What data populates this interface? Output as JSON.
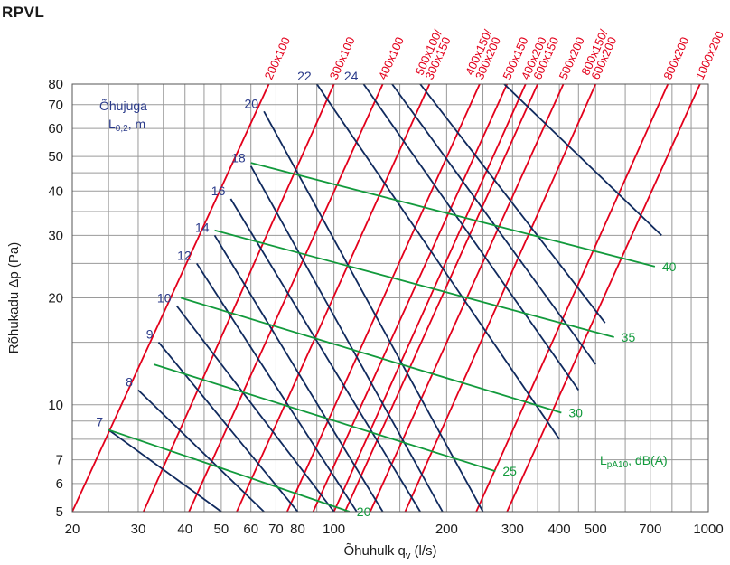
{
  "title": "RPVL",
  "chart_data": {
    "type": "line",
    "xscale": "log",
    "yscale": "log",
    "xlim": [
      20,
      1000
    ],
    "ylim": [
      5,
      80
    ],
    "grid": true,
    "x_ticks": [
      20,
      30,
      40,
      50,
      60,
      70,
      80,
      100,
      200,
      300,
      400,
      500,
      700,
      1000
    ],
    "x_tick_labels": [
      "20",
      "30",
      "40",
      "50",
      "60",
      "70",
      "80",
      "100",
      "200",
      "300",
      "400",
      "500",
      "700",
      "1000"
    ],
    "y_ticks": [
      5,
      6,
      7,
      10,
      20,
      30,
      40,
      50,
      60,
      70,
      80
    ],
    "y_tick_labels": [
      "5",
      "6",
      "7",
      "10",
      "20",
      "30",
      "40",
      "50",
      "60",
      "70",
      "80"
    ],
    "x_grid": [
      20,
      25,
      30,
      35,
      40,
      45,
      50,
      60,
      70,
      80,
      90,
      100,
      150,
      200,
      250,
      300,
      350,
      400,
      450,
      500,
      600,
      700,
      800,
      900,
      1000
    ],
    "y_grid": [
      5,
      6,
      7,
      8,
      9,
      10,
      15,
      20,
      25,
      30,
      35,
      40,
      45,
      50,
      60,
      70,
      80
    ],
    "xlabel_main": "Õhuhulk q",
    "xlabel_sub": "v",
    "xlabel_unit": "(l/s)",
    "ylabel": "Rõhukadu Δp (Pa)",
    "colors": {
      "duct": "#e3001b",
      "throw": "#102a5e",
      "noise": "#129a3c",
      "grid": "#9a9a9a",
      "throw_text": "#2a3a8a",
      "noise_text": "#129a3c"
    },
    "duct_series": [
      {
        "label": [
          "200x100"
        ],
        "points": [
          [
            20,
            5
          ],
          [
            67,
            80
          ]
        ]
      },
      {
        "label": [
          "300x100"
        ],
        "points": [
          [
            31,
            5
          ],
          [
            100,
            80
          ]
        ]
      },
      {
        "label": [
          "400x100"
        ],
        "points": [
          [
            41,
            5
          ],
          [
            135,
            80
          ]
        ]
      },
      {
        "label": [
          "500x100/",
          "300x150"
        ],
        "points": [
          [
            55,
            5
          ],
          [
            180,
            80
          ]
        ]
      },
      {
        "label": [
          "400x150/",
          "300x200"
        ],
        "points": [
          [
            75,
            5
          ],
          [
            245,
            80
          ]
        ]
      },
      {
        "label": [
          "500x150"
        ],
        "points": [
          [
            88,
            5
          ],
          [
            290,
            80
          ]
        ]
      },
      {
        "label": [
          "400x200"
        ],
        "points": [
          [
            100,
            5
          ],
          [
            325,
            80
          ]
        ]
      },
      {
        "label": [
          "600x150"
        ],
        "points": [
          [
            107,
            5
          ],
          [
            350,
            80
          ]
        ]
      },
      {
        "label": [
          "500x200"
        ],
        "points": [
          [
            125,
            5
          ],
          [
            410,
            80
          ]
        ]
      },
      {
        "label": [
          "800x150/",
          "600x200"
        ],
        "points": [
          [
            155,
            5
          ],
          [
            500,
            80
          ]
        ]
      },
      {
        "label": [
          "800x200"
        ],
        "points": [
          [
            240,
            5
          ],
          [
            780,
            80
          ]
        ]
      },
      {
        "label": [
          "1000x200"
        ],
        "points": [
          [
            290,
            5
          ],
          [
            950,
            80
          ]
        ]
      }
    ],
    "throw_series": [
      {
        "label": "7",
        "points": [
          [
            25,
            8.5
          ],
          [
            50,
            5
          ]
        ]
      },
      {
        "label": "8",
        "points": [
          [
            30,
            11
          ],
          [
            65,
            5
          ]
        ]
      },
      {
        "label": "9",
        "points": [
          [
            34,
            15
          ],
          [
            80,
            5
          ]
        ]
      },
      {
        "label": "10",
        "points": [
          [
            38,
            19
          ],
          [
            100,
            5
          ]
        ]
      },
      {
        "label": "12",
        "points": [
          [
            43,
            25
          ],
          [
            115,
            5
          ]
        ]
      },
      {
        "label": "14",
        "points": [
          [
            48,
            30
          ],
          [
            135,
            5
          ]
        ]
      },
      {
        "label": "16",
        "points": [
          [
            53,
            38
          ],
          [
            170,
            5
          ]
        ]
      },
      {
        "label": "18",
        "points": [
          [
            60,
            47
          ],
          [
            195,
            5
          ]
        ]
      },
      {
        "label": "20",
        "points": [
          [
            65,
            67
          ],
          [
            250,
            5
          ]
        ]
      },
      {
        "label": "22",
        "points": [
          [
            90,
            80
          ],
          [
            400,
            8
          ]
        ]
      },
      {
        "label": "24",
        "points": [
          [
            120,
            80
          ],
          [
            450,
            11
          ]
        ]
      },
      {
        "label": "",
        "points": [
          [
            143,
            80
          ],
          [
            500,
            13
          ]
        ]
      },
      {
        "label": "",
        "points": [
          [
            170,
            80
          ],
          [
            530,
            17
          ]
        ]
      },
      {
        "label": "",
        "points": [
          [
            285,
            80
          ],
          [
            750,
            30
          ]
        ]
      }
    ],
    "noise_series": [
      {
        "label": "20",
        "points": [
          [
            25,
            8.5
          ],
          [
            110,
            5
          ]
        ]
      },
      {
        "label": "25",
        "points": [
          [
            33,
            13
          ],
          [
            270,
            6.5
          ]
        ]
      },
      {
        "label": "30",
        "points": [
          [
            39,
            20
          ],
          [
            405,
            9.5
          ]
        ]
      },
      {
        "label": "35",
        "points": [
          [
            48,
            31
          ],
          [
            560,
            15.5
          ]
        ]
      },
      {
        "label": "40",
        "points": [
          [
            60,
            48
          ],
          [
            720,
            24.5
          ]
        ]
      }
    ],
    "legend_throw": {
      "main": "Õhujuga",
      "L": "L",
      "sub": "0,2",
      "unit": ", m"
    },
    "legend_noise": {
      "L": "L",
      "sub": "pA10",
      "unit": ", dB(A)"
    }
  }
}
